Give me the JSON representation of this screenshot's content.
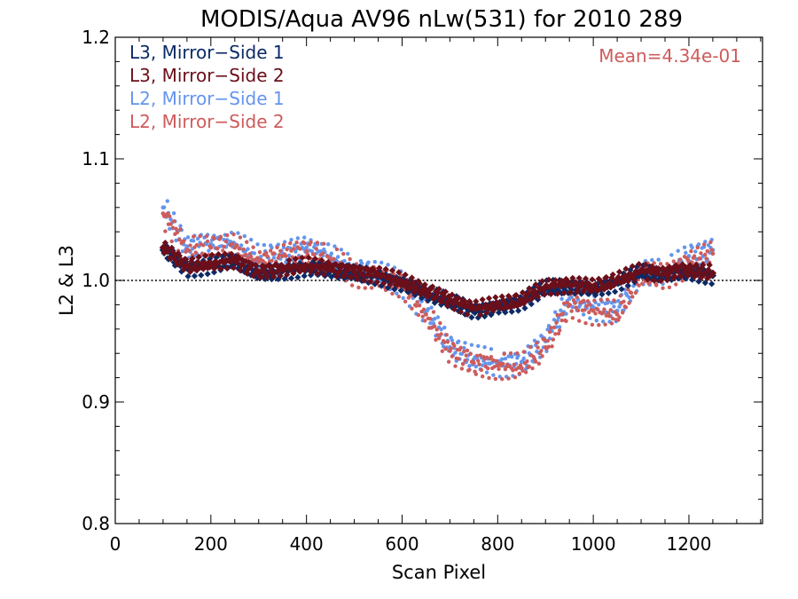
{
  "chart_data": {
    "type": "scatter",
    "title": "MODIS/Aqua AV96 nLw(531) for 2010 289",
    "xlabel": "Scan Pixel",
    "ylabel": "L2 & L3",
    "xlim": [
      0,
      1354
    ],
    "ylim": [
      0.8,
      1.2
    ],
    "x_ticks": [
      "0",
      "200",
      "400",
      "600",
      "800",
      "1000",
      "1200"
    ],
    "y_ticks": [
      "0.8",
      "0.9",
      "1.0",
      "1.1",
      "1.2"
    ],
    "reference_line": 1.0,
    "annotation": "Mean=4.34e-01",
    "annotation_color": "#cd5c5c",
    "grid": false,
    "legend_position": "top-left",
    "series": [
      {
        "name": "L3, Mirror−Side 1",
        "color": "#0b2a66",
        "marker": "diamond",
        "x": [
          100,
          150,
          200,
          250,
          300,
          350,
          400,
          450,
          500,
          550,
          600,
          650,
          700,
          750,
          800,
          850,
          900,
          950,
          1000,
          1050,
          1100,
          1150,
          1200,
          1250
        ],
        "y": [
          1.025,
          1.01,
          1.012,
          1.015,
          1.005,
          1.008,
          1.01,
          1.008,
          1.005,
          1.003,
          0.997,
          0.99,
          0.982,
          0.975,
          0.978,
          0.982,
          0.993,
          0.995,
          0.993,
          0.998,
          1.006,
          1.004,
          1.007,
          1.004
        ]
      },
      {
        "name": "L3, Mirror−Side 2",
        "color": "#6b0f1a",
        "marker": "diamond",
        "x": [
          100,
          150,
          200,
          250,
          300,
          350,
          400,
          450,
          500,
          550,
          600,
          650,
          700,
          750,
          800,
          850,
          900,
          950,
          1000,
          1050,
          1100,
          1150,
          1200,
          1250
        ],
        "y": [
          1.027,
          1.012,
          1.014,
          1.017,
          1.007,
          1.01,
          1.012,
          1.01,
          1.007,
          1.005,
          0.999,
          0.992,
          0.984,
          0.977,
          0.98,
          0.984,
          0.995,
          0.997,
          0.995,
          1.0,
          1.008,
          1.006,
          1.009,
          1.006
        ]
      },
      {
        "name": "L2, Mirror−Side 1",
        "color": "#6495ed",
        "marker": "dot",
        "x": [
          100,
          150,
          200,
          250,
          300,
          350,
          400,
          450,
          500,
          550,
          600,
          650,
          700,
          750,
          800,
          850,
          900,
          950,
          1000,
          1050,
          1100,
          1150,
          1200,
          1250
        ],
        "y": [
          1.06,
          1.028,
          1.03,
          1.03,
          1.018,
          1.022,
          1.027,
          1.02,
          1.008,
          1.005,
          0.998,
          0.975,
          0.945,
          0.935,
          0.932,
          0.933,
          0.95,
          0.985,
          0.978,
          0.975,
          1.008,
          1.005,
          1.02,
          1.025
        ]
      },
      {
        "name": "L2, Mirror−Side 2",
        "color": "#cd5c5c",
        "marker": "dot",
        "x": [
          100,
          150,
          200,
          250,
          300,
          350,
          400,
          450,
          500,
          550,
          600,
          650,
          700,
          750,
          800,
          850,
          900,
          950,
          1000,
          1050,
          1100,
          1150,
          1200,
          1250
        ],
        "y": [
          1.055,
          1.025,
          1.027,
          1.027,
          1.015,
          1.02,
          1.024,
          1.017,
          1.006,
          1.003,
          0.996,
          0.972,
          0.942,
          0.932,
          0.93,
          0.928,
          0.945,
          0.98,
          0.975,
          0.972,
          1.005,
          1.003,
          1.015,
          1.022
        ]
      }
    ]
  }
}
